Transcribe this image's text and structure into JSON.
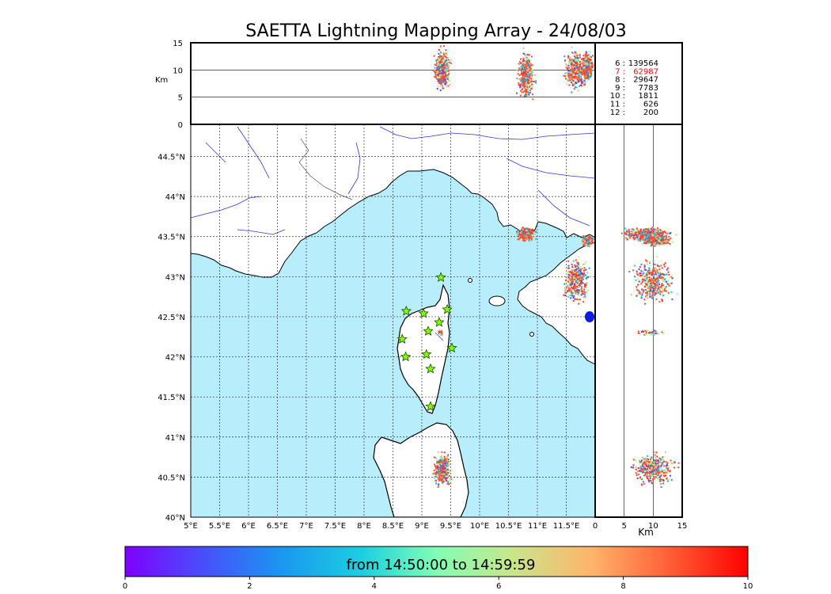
{
  "title": "SAETTA Lightning Mapping Array - 24/08/03",
  "map": {
    "lon_range": [
      5,
      12.0
    ],
    "lat_range": [
      40,
      44.9
    ],
    "lon_ticks": [
      "5°E",
      "5.5°E",
      "6°E",
      "6.5°E",
      "7°E",
      "7.5°E",
      "8°E",
      "8.5°E",
      "9°E",
      "9.5°E",
      "10°E",
      "10.5°E",
      "11°E",
      "11.5°E"
    ],
    "lat_ticks": [
      "40°N",
      "40.5°N",
      "41°N",
      "41.5°N",
      "42°N",
      "42.5°N",
      "43°N",
      "43.5°N",
      "44°N",
      "44.5°N"
    ],
    "sea_color": "#b8eefc",
    "land_color": "#ffffff"
  },
  "top_panel": {
    "ylabel": "Km",
    "yticks": [
      "0",
      "5",
      "10",
      "15"
    ],
    "ylim": [
      0,
      15
    ]
  },
  "side_panel": {
    "xlabel": "Km",
    "xticks": [
      "0",
      "5",
      "10",
      "15"
    ],
    "xlim": [
      0,
      15
    ]
  },
  "station_counts": [
    {
      "label": "6 :",
      "value": "139564",
      "color": "#000000"
    },
    {
      "label": "7 :",
      "value": "62987",
      "color": "#ff0000"
    },
    {
      "label": "8 :",
      "value": "29647",
      "color": "#000000"
    },
    {
      "label": "9 :",
      "value": "7783",
      "color": "#000000"
    },
    {
      "label": "10 :",
      "value": "1811",
      "color": "#000000"
    },
    {
      "label": "11 :",
      "value": "626",
      "color": "#000000"
    },
    {
      "label": "12 :",
      "value": "200",
      "color": "#000000"
    }
  ],
  "colorbar": {
    "label": "from 14:50:00 to 14:59:59",
    "ticks": [
      "0",
      "2",
      "4",
      "6",
      "8",
      "10"
    ],
    "range": [
      0,
      10
    ],
    "colormap": "rainbow"
  },
  "chart_data": {
    "type": "scatter",
    "title": "SAETTA Lightning Mapping Array - 24/08/03",
    "xlabel": "",
    "ylabel": "",
    "xlim": [
      5,
      12.0
    ],
    "ylim": [
      40,
      44.9
    ],
    "grid": true,
    "color_scale": "time (min) 0–10",
    "stations": [
      {
        "lon": 9.33,
        "lat": 42.99
      },
      {
        "lon": 8.73,
        "lat": 42.57
      },
      {
        "lon": 9.03,
        "lat": 42.54
      },
      {
        "lon": 9.44,
        "lat": 42.59
      },
      {
        "lon": 9.3,
        "lat": 42.43
      },
      {
        "lon": 9.11,
        "lat": 42.32
      },
      {
        "lon": 8.66,
        "lat": 42.22
      },
      {
        "lon": 9.08,
        "lat": 42.03
      },
      {
        "lon": 8.72,
        "lat": 42.0
      },
      {
        "lon": 9.52,
        "lat": 42.11
      },
      {
        "lon": 9.15,
        "lat": 41.85
      },
      {
        "lon": 9.15,
        "lat": 41.38
      }
    ],
    "clusters": [
      {
        "lon_center": 9.35,
        "lat_center": 40.6,
        "lon_spread": 0.12,
        "lat_spread": 0.17,
        "alt_center": 10.0,
        "alt_spread": 3.0
      },
      {
        "lon_center": 10.8,
        "lat_center": 43.53,
        "lon_spread": 0.12,
        "lat_spread": 0.07,
        "alt_center": 9.0,
        "alt_spread": 3.5
      },
      {
        "lon_center": 11.68,
        "lat_center": 42.95,
        "lon_spread": 0.18,
        "lat_spread": 0.22,
        "alt_center": 10.0,
        "alt_spread": 3.0
      },
      {
        "lon_center": 11.87,
        "lat_center": 43.45,
        "lon_spread": 0.08,
        "lat_spread": 0.05,
        "alt_center": 10.5,
        "alt_spread": 2.0
      },
      {
        "lon_center": 9.32,
        "lat_center": 42.3,
        "lon_spread": 0.03,
        "lat_spread": 0.03,
        "alt_center": 9.5,
        "alt_spread": 2.0
      }
    ]
  }
}
